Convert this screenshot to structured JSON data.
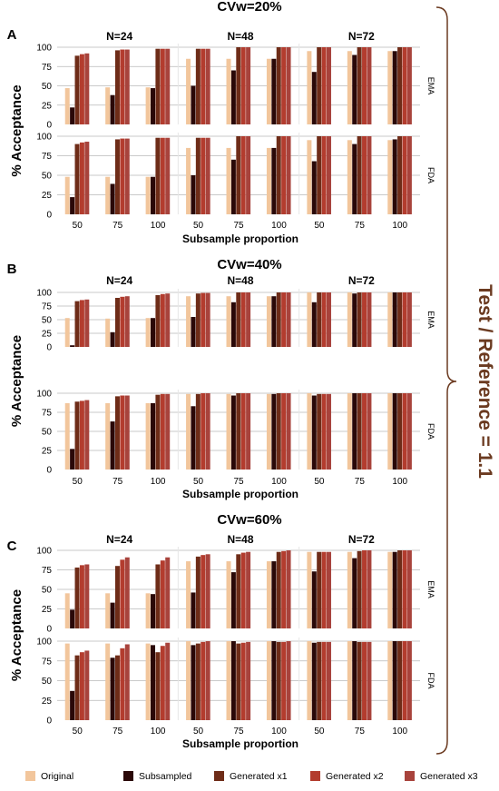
{
  "colors": {
    "original": "#f2c69c",
    "subsampled": "#2a0808",
    "gen1": "#6e2c18",
    "gen2": "#b33c2e",
    "gen3": "#a8433c",
    "grid": "#d9d9d9",
    "bracket": "#6b3a20",
    "side_label": "#6b3a20",
    "text": "#000000"
  },
  "figure": {
    "side_label": "Test / Reference = 1.1",
    "legend": [
      "Original",
      "Subsampled",
      "Generated x1",
      "Generated x2",
      "Generated x3"
    ]
  },
  "chart_data": [
    {
      "type": "bar",
      "panel_letter": "A",
      "title": "CVw=20%",
      "ylabel": "% Acceptance",
      "xlabel": "Subsample proportion",
      "ylim": [
        0,
        100
      ],
      "yticks": [
        "0",
        "25",
        "50",
        "75",
        "100"
      ],
      "groups": [
        "N=24",
        "N=48",
        "N=72"
      ],
      "categories": [
        "50",
        "75",
        "100"
      ],
      "series": [
        {
          "name": "Original",
          "key": "original"
        },
        {
          "name": "Subsampled",
          "key": "subsampled"
        },
        {
          "name": "Generated x1",
          "key": "gen1"
        },
        {
          "name": "Generated x2",
          "key": "gen2"
        },
        {
          "name": "Generated x3",
          "key": "gen3"
        }
      ],
      "facets": [
        {
          "name": "EMA",
          "values": [
            [
              [
                47,
                22,
                89,
                91,
                92
              ],
              [
                48,
                38,
                96,
                97,
                97
              ],
              [
                48,
                47,
                98,
                98,
                98
              ]
            ],
            [
              [
                85,
                50,
                98,
                98,
                98
              ],
              [
                85,
                70,
                100,
                100,
                100
              ],
              [
                85,
                85,
                100,
                100,
                100
              ]
            ],
            [
              [
                95,
                68,
                100,
                100,
                100
              ],
              [
                95,
                90,
                100,
                100,
                100
              ],
              [
                95,
                95,
                100,
                100,
                100
              ]
            ]
          ]
        },
        {
          "name": "FDA",
          "values": [
            [
              [
                48,
                22,
                90,
                92,
                93
              ],
              [
                48,
                39,
                96,
                97,
                97
              ],
              [
                48,
                48,
                98,
                98,
                98
              ]
            ],
            [
              [
                85,
                50,
                98,
                98,
                98
              ],
              [
                85,
                70,
                100,
                100,
                100
              ],
              [
                85,
                85,
                100,
                100,
                100
              ]
            ],
            [
              [
                95,
                68,
                100,
                100,
                100
              ],
              [
                95,
                90,
                100,
                100,
                100
              ],
              [
                95,
                96,
                100,
                100,
                100
              ]
            ]
          ]
        }
      ]
    },
    {
      "type": "bar",
      "panel_letter": "B",
      "title": "CVw=40%",
      "ylabel": "% Acceptance",
      "xlabel": "Subsample proportion",
      "ylim": [
        0,
        100
      ],
      "yticks": [
        "0",
        "25",
        "50",
        "75",
        "100"
      ],
      "groups": [
        "N=24",
        "N=48",
        "N=72"
      ],
      "categories": [
        "50",
        "75",
        "100"
      ],
      "series": [
        {
          "name": "Original",
          "key": "original"
        },
        {
          "name": "Subsampled",
          "key": "subsampled"
        },
        {
          "name": "Generated x1",
          "key": "gen1"
        },
        {
          "name": "Generated x2",
          "key": "gen2"
        },
        {
          "name": "Generated x3",
          "key": "gen3"
        }
      ],
      "facets": [
        {
          "name": "EMA",
          "values": [
            [
              [
                53,
                3,
                84,
                86,
                87
              ],
              [
                52,
                27,
                90,
                92,
                93
              ],
              [
                53,
                53,
                95,
                97,
                98
              ]
            ],
            [
              [
                93,
                55,
                98,
                99,
                99
              ],
              [
                93,
                82,
                100,
                100,
                100
              ],
              [
                93,
                93,
                100,
                100,
                100
              ]
            ],
            [
              [
                100,
                82,
                100,
                100,
                100
              ],
              [
                100,
                98,
                100,
                100,
                100
              ],
              [
                100,
                100,
                100,
                100,
                100
              ]
            ]
          ]
        },
        {
          "name": "FDA",
          "values": [
            [
              [
                87,
                27,
                89,
                90,
                91
              ],
              [
                87,
                63,
                96,
                97,
                97
              ],
              [
                87,
                87,
                98,
                99,
                99
              ]
            ],
            [
              [
                99,
                83,
                99,
                100,
                100
              ],
              [
                99,
                97,
                100,
                100,
                100
              ],
              [
                99,
                99,
                100,
                100,
                100
              ]
            ],
            [
              [
                100,
                97,
                99,
                99,
                99
              ],
              [
                100,
                100,
                100,
                100,
                100
              ],
              [
                100,
                100,
                100,
                100,
                100
              ]
            ]
          ]
        }
      ]
    },
    {
      "type": "bar",
      "panel_letter": "C",
      "title": "CVw=60%",
      "ylabel": "% Acceptance",
      "xlabel": "Subsample proportion",
      "ylim": [
        0,
        100
      ],
      "yticks": [
        "0",
        "25",
        "50",
        "75",
        "100"
      ],
      "groups": [
        "N=24",
        "N=48",
        "N=72"
      ],
      "categories": [
        "50",
        "75",
        "100"
      ],
      "series": [
        {
          "name": "Original",
          "key": "original"
        },
        {
          "name": "Subsampled",
          "key": "subsampled"
        },
        {
          "name": "Generated x1",
          "key": "gen1"
        },
        {
          "name": "Generated x2",
          "key": "gen2"
        },
        {
          "name": "Generated x3",
          "key": "gen3"
        }
      ],
      "facets": [
        {
          "name": "EMA",
          "values": [
            [
              [
                45,
                24,
                78,
                81,
                82
              ],
              [
                45,
                33,
                80,
                88,
                91
              ],
              [
                45,
                44,
                82,
                87,
                91
              ]
            ],
            [
              [
                86,
                46,
                92,
                94,
                95
              ],
              [
                86,
                72,
                95,
                97,
                98
              ],
              [
                86,
                86,
                98,
                99,
                100
              ]
            ],
            [
              [
                98,
                73,
                98,
                98,
                98
              ],
              [
                98,
                90,
                99,
                100,
                100
              ],
              [
                98,
                98,
                100,
                100,
                100
              ]
            ]
          ]
        },
        {
          "name": "FDA",
          "values": [
            [
              [
                97,
                37,
                82,
                86,
                88
              ],
              [
                97,
                79,
                82,
                91,
                96
              ],
              [
                97,
                95,
                86,
                94,
                98
              ]
            ],
            [
              [
                100,
                95,
                97,
                99,
                100
              ],
              [
                100,
                100,
                97,
                98,
                99
              ],
              [
                100,
                100,
                99,
                99,
                100
              ]
            ],
            [
              [
                100,
                98,
                99,
                99,
                99
              ],
              [
                100,
                100,
                99,
                99,
                99
              ],
              [
                100,
                100,
                100,
                100,
                100
              ]
            ]
          ]
        }
      ]
    }
  ]
}
